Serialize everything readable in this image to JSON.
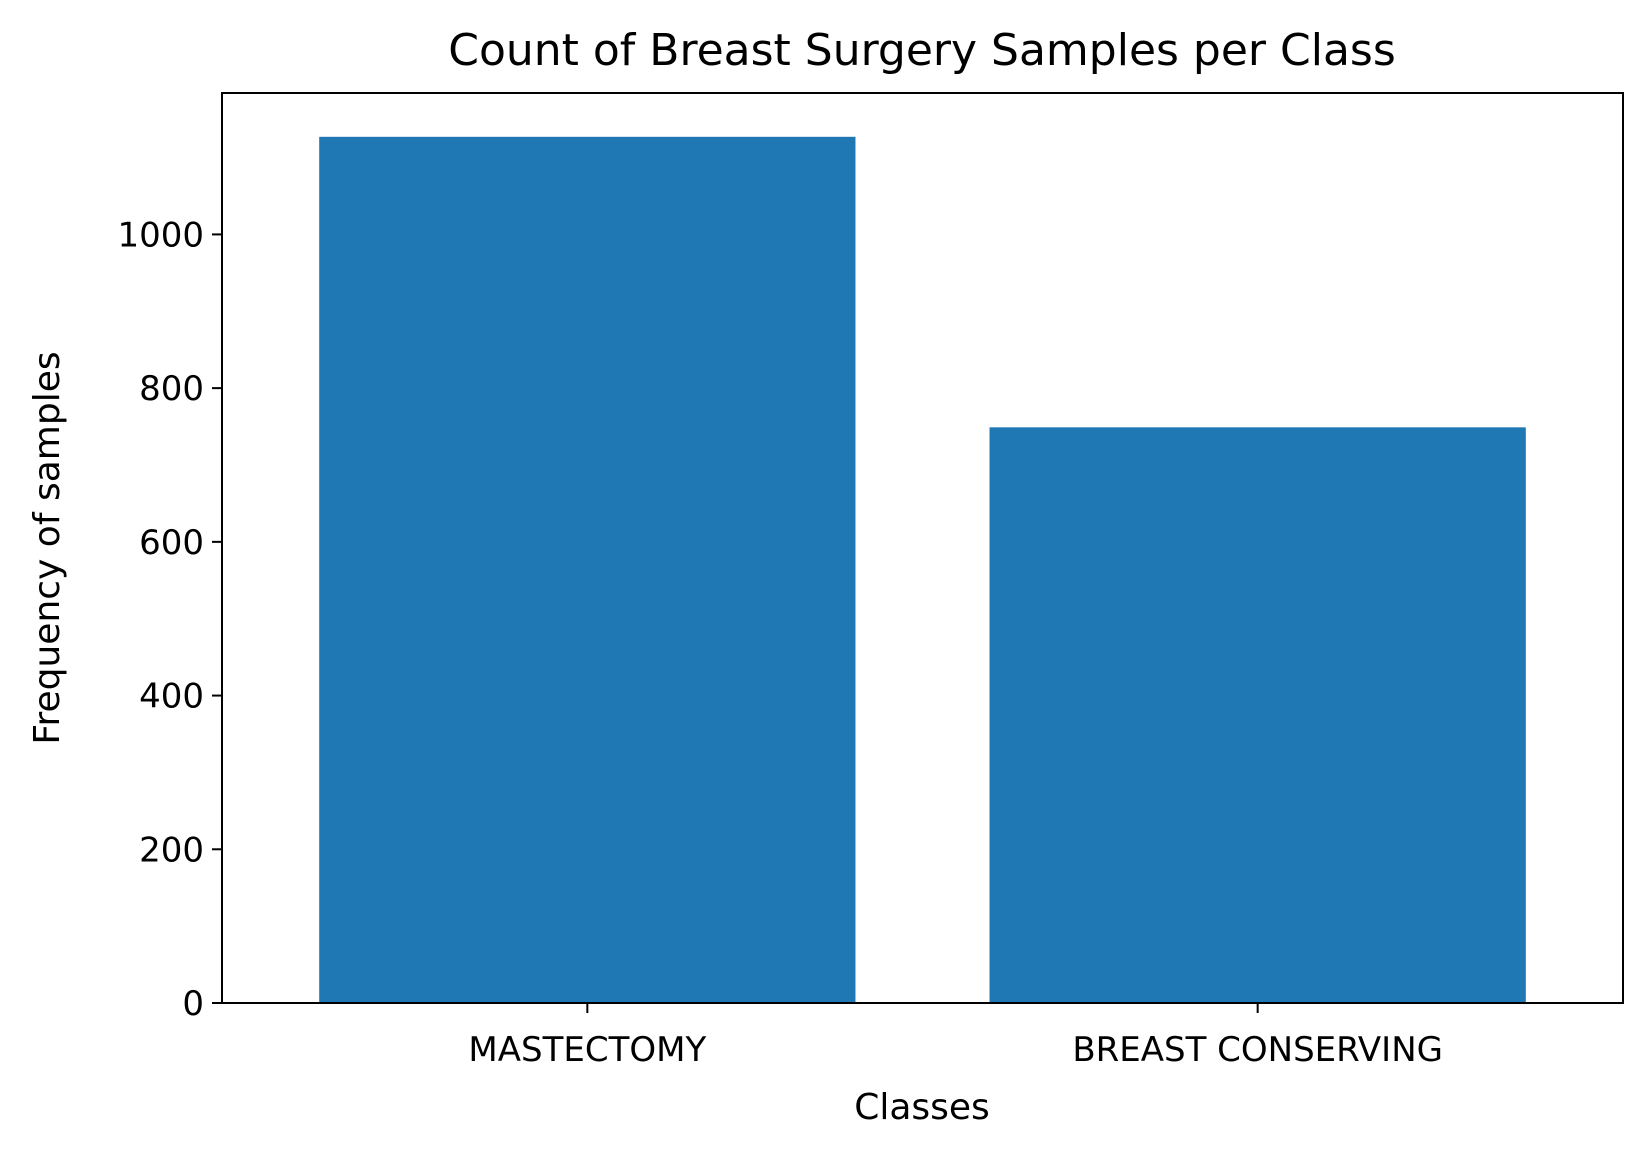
{
  "chart_data": {
    "type": "bar",
    "title": "Count of Breast Surgery Samples per Class",
    "xlabel": "Classes",
    "ylabel": "Frequency of samples",
    "categories": [
      "MASTECTOMY",
      "BREAST CONSERVING"
    ],
    "values": [
      1127,
      749
    ],
    "ylim": [
      0,
      1184
    ],
    "yticks": [
      0,
      200,
      400,
      600,
      800,
      1000
    ],
    "grid": false,
    "legend": "none",
    "bar_color": "#1f77b4"
  }
}
